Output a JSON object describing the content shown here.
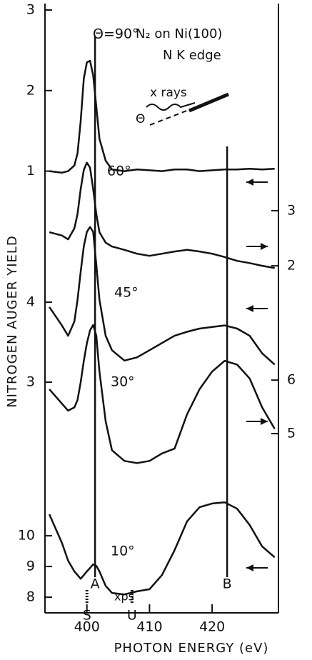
{
  "chart_data": {
    "type": "line",
    "x_label": "PHOTON ENERGY (eV)",
    "y_label": "NITROGEN AUGER YIELD",
    "annotation": "N₂ on Ni(100)",
    "edge_label": "N K edge",
    "inset_label": "x rays",
    "inset_angle": "Θ",
    "xps_label": "xps",
    "xlim": [
      393.3,
      430.6
    ],
    "xticks": [
      400,
      410,
      420
    ],
    "x": [
      394,
      396,
      397,
      398,
      398.5,
      399,
      399.5,
      400,
      400.5,
      401,
      401.5,
      402,
      403,
      404,
      406,
      408,
      410,
      412,
      414,
      416,
      418,
      420,
      422,
      424,
      426,
      428,
      430
    ],
    "markers": [
      {
        "label": "A",
        "x": 401.3
      },
      {
        "label": "B",
        "x": 422.4
      },
      {
        "label": "S",
        "x": 400.0
      },
      {
        "label": "U",
        "x": 407.2
      }
    ],
    "series": [
      {
        "name": "Θ=90°",
        "color": "#111111",
        "tick_side": "left",
        "ylim": [
          0.73,
          3.08
        ],
        "yticks": [
          1,
          2,
          3
        ],
        "values": [
          1.0,
          0.98,
          1.0,
          1.07,
          1.22,
          1.62,
          2.15,
          2.35,
          2.37,
          2.19,
          1.8,
          1.4,
          1.13,
          1.02,
          1.0,
          1.02,
          1.01,
          1.0,
          1.02,
          1.02,
          1.0,
          1.01,
          1.02,
          1.02,
          1.03,
          1.02,
          1.03
        ]
      },
      {
        "name": "60°",
        "color": "#111111",
        "tick_side": "right",
        "ylim": [
          1.38,
          4.23
        ],
        "yticks": [
          2,
          3
        ],
        "values": [
          2.61,
          2.55,
          2.48,
          2.68,
          2.94,
          3.39,
          3.74,
          3.87,
          3.78,
          3.39,
          2.94,
          2.61,
          2.42,
          2.35,
          2.29,
          2.22,
          2.18,
          2.22,
          2.26,
          2.29,
          2.26,
          2.22,
          2.16,
          2.09,
          2.05,
          2.0,
          1.96
        ]
      },
      {
        "name": "45°",
        "color": "#111111",
        "tick_side": "left",
        "ylim": [
          2.42,
          5.01
        ],
        "yticks": [
          3,
          4
        ],
        "values": [
          3.94,
          3.71,
          3.58,
          3.76,
          4.03,
          4.38,
          4.7,
          4.88,
          4.94,
          4.88,
          4.47,
          4.03,
          3.58,
          3.4,
          3.27,
          3.31,
          3.4,
          3.49,
          3.58,
          3.63,
          3.67,
          3.69,
          3.71,
          3.67,
          3.58,
          3.36,
          3.22
        ]
      },
      {
        "name": "30°",
        "color": "#111111",
        "tick_side": "right",
        "ylim": [
          3.76,
          7.23
        ],
        "yticks": [
          5,
          6
        ],
        "values": [
          5.83,
          5.56,
          5.43,
          5.49,
          5.63,
          5.96,
          6.36,
          6.69,
          6.93,
          7.03,
          6.83,
          6.16,
          5.23,
          4.69,
          4.49,
          4.45,
          4.49,
          4.63,
          4.72,
          5.36,
          5.83,
          6.16,
          6.36,
          6.29,
          6.03,
          5.49,
          5.09
        ]
      },
      {
        "name": "10°",
        "color": "#111111",
        "tick_side": "left",
        "ylim": [
          7.49,
          12.56
        ],
        "yticks": [
          8,
          9,
          10
        ],
        "values": [
          10.7,
          9.77,
          9.19,
          8.84,
          8.72,
          8.6,
          8.72,
          8.84,
          8.95,
          9.07,
          9.02,
          8.84,
          8.37,
          8.14,
          8.09,
          8.19,
          8.26,
          8.72,
          9.53,
          10.47,
          10.93,
          11.05,
          11.09,
          10.88,
          10.35,
          9.65,
          9.3
        ]
      }
    ]
  }
}
